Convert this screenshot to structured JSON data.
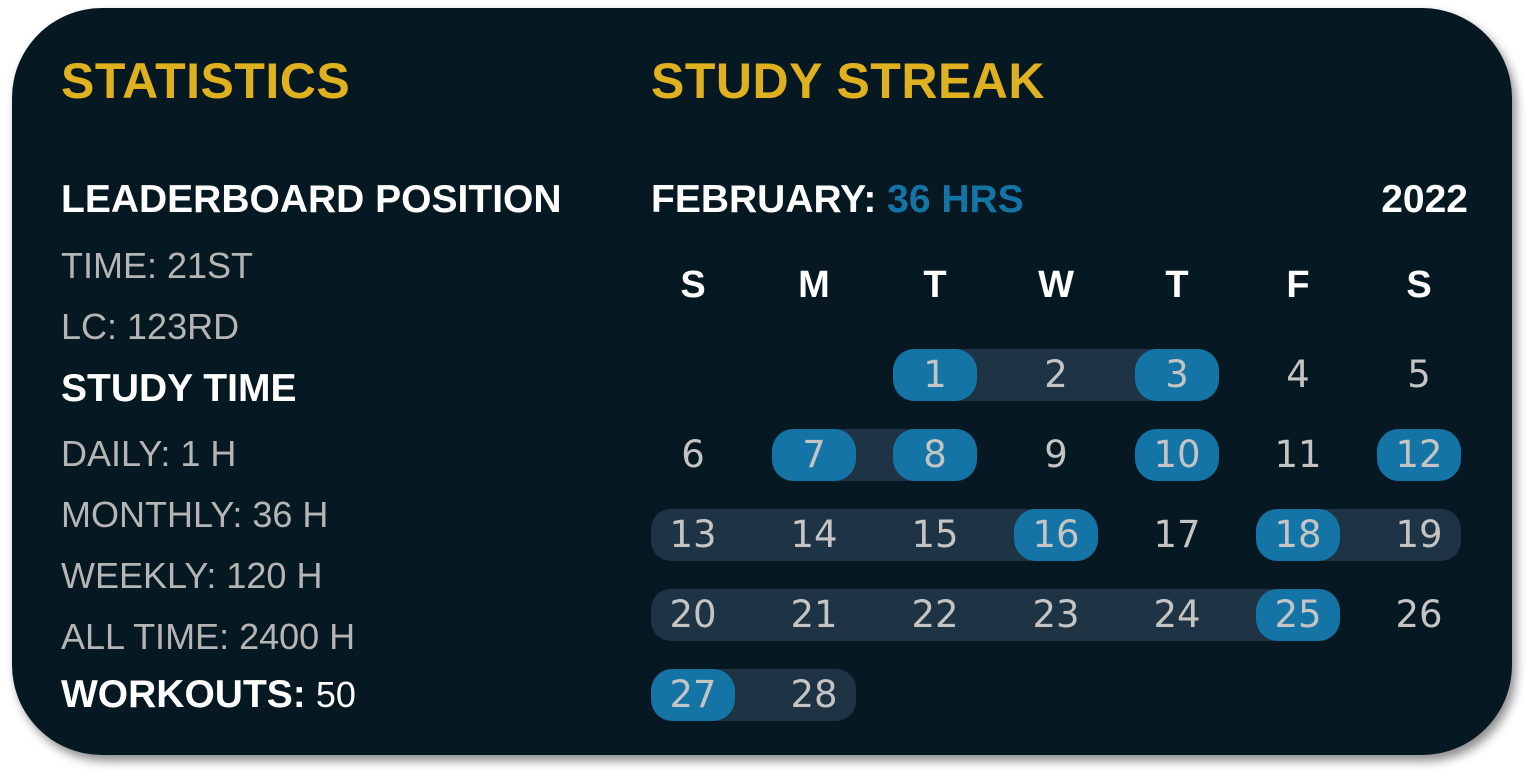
{
  "statistics": {
    "title": "STATISTICS",
    "leaderboard_heading": "LEADERBOARD POSITION",
    "time": "TIME: 21ST",
    "lc": "LC: 123RD",
    "study_time_heading": "STUDY TIME",
    "daily": "DAILY: 1 H",
    "monthly": "MONTHLY: 36 H",
    "weekly": "WEEKLY: 120 H",
    "all_time": "ALL TIME: 2400 H",
    "workouts_label": "WORKOUTS:",
    "workouts_value": " 50"
  },
  "streak": {
    "title": "STUDY STREAK",
    "month_label": "FEBRUARY: ",
    "month_hours": "36 HRS",
    "year": "2022",
    "weekdays": [
      "S",
      "M",
      "T",
      "W",
      "T",
      "F",
      "S"
    ],
    "first_weekday_index": 2,
    "days_in_month": 28,
    "studied_days": [
      1,
      3,
      7,
      8,
      10,
      12,
      16,
      18,
      25,
      27
    ],
    "streak_ranges": [
      [
        1,
        3
      ],
      [
        7,
        8
      ],
      [
        13,
        16
      ],
      [
        18,
        19
      ],
      [
        20,
        25
      ],
      [
        27,
        28
      ]
    ],
    "colors": {
      "studied": "#1574a6",
      "streak": "#1e3344",
      "title": "#dfb11e"
    }
  }
}
